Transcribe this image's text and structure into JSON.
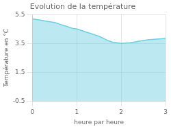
{
  "chart_data": {
    "type": "area",
    "title": "Evolution de la température",
    "x_label": "heure par heure",
    "y_label": "Température en °C",
    "x": [
      0,
      0.1,
      0.2,
      0.3,
      0.4,
      0.5,
      0.6,
      0.7,
      0.8,
      0.9,
      1.0,
      1.1,
      1.2,
      1.3,
      1.4,
      1.5,
      1.6,
      1.7,
      1.8,
      1.9,
      2.0,
      2.1,
      2.2,
      2.3,
      2.4,
      2.5,
      2.6,
      2.7,
      2.8,
      2.9,
      3.0
    ],
    "values": [
      5.2,
      5.15,
      5.1,
      5.05,
      5.0,
      4.95,
      4.85,
      4.75,
      4.65,
      4.55,
      4.5,
      4.4,
      4.3,
      4.2,
      4.1,
      4.0,
      3.85,
      3.7,
      3.6,
      3.55,
      3.5,
      3.52,
      3.55,
      3.6,
      3.65,
      3.7,
      3.75,
      3.78,
      3.8,
      3.82,
      3.85
    ],
    "color": "#6acfe0",
    "xlim": [
      0,
      3
    ],
    "xticks": [
      0,
      1,
      2,
      3
    ],
    "ylim": [
      -0.5,
      5.5
    ],
    "yticks": [
      -0.5,
      1.5,
      3.5,
      5.5
    ],
    "grid": true
  }
}
